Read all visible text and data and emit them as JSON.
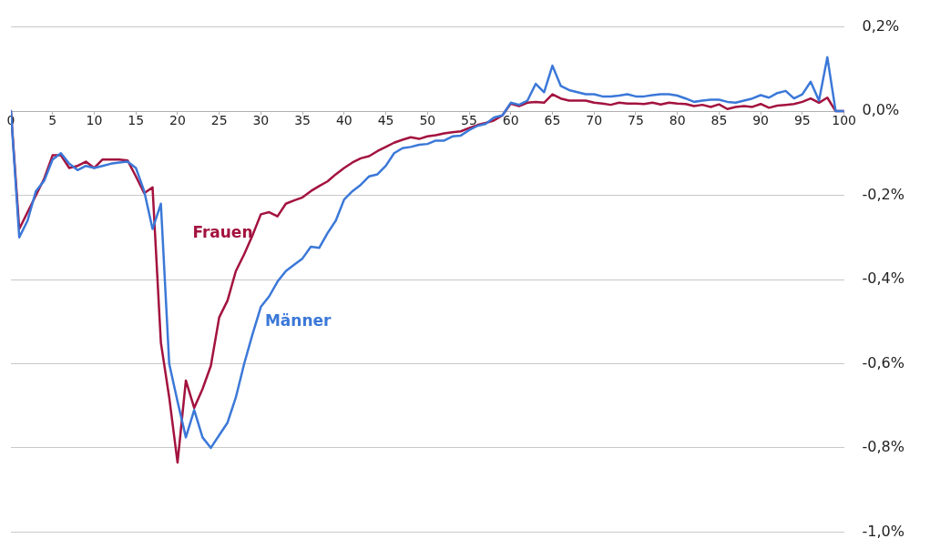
{
  "chart_data": {
    "type": "line",
    "x": [
      0,
      1,
      2,
      3,
      4,
      5,
      6,
      7,
      8,
      9,
      10,
      11,
      12,
      13,
      14,
      15,
      16,
      17,
      18,
      19,
      20,
      21,
      22,
      23,
      24,
      25,
      26,
      27,
      28,
      29,
      30,
      31,
      32,
      33,
      34,
      35,
      36,
      37,
      38,
      39,
      40,
      41,
      42,
      43,
      44,
      45,
      46,
      47,
      48,
      49,
      50,
      51,
      52,
      53,
      54,
      55,
      56,
      57,
      58,
      59,
      60,
      61,
      62,
      63,
      64,
      65,
      66,
      67,
      68,
      69,
      70,
      71,
      72,
      73,
      74,
      75,
      76,
      77,
      78,
      79,
      80,
      81,
      82,
      83,
      84,
      85,
      86,
      87,
      88,
      89,
      90,
      91,
      92,
      93,
      94,
      95,
      96,
      97,
      98,
      99,
      100
    ],
    "series": [
      {
        "name": "Männer",
        "color": "#3b78d8",
        "values": [
          0,
          -0.3,
          -0.26,
          -0.19,
          -0.165,
          -0.115,
          -0.1,
          -0.125,
          -0.14,
          -0.13,
          -0.135,
          -0.13,
          -0.125,
          -0.122,
          -0.12,
          -0.135,
          -0.19,
          -0.28,
          -0.22,
          -0.6,
          -0.69,
          -0.775,
          -0.71,
          -0.775,
          -0.8,
          -0.77,
          -0.74,
          -0.68,
          -0.6,
          -0.53,
          -0.465,
          -0.44,
          -0.405,
          -0.38,
          -0.365,
          -0.35,
          -0.322,
          -0.325,
          -0.29,
          -0.26,
          -0.21,
          -0.19,
          -0.175,
          -0.155,
          -0.15,
          -0.13,
          -0.1,
          -0.088,
          -0.085,
          -0.08,
          -0.078,
          -0.07,
          -0.07,
          -0.06,
          -0.058,
          -0.045,
          -0.035,
          -0.03,
          -0.015,
          -0.01,
          0.02,
          0.015,
          0.025,
          0.065,
          0.045,
          0.108,
          0.06,
          0.05,
          0.045,
          0.04,
          0.04,
          0.035,
          0.035,
          0.037,
          0.04,
          0.035,
          0.035,
          0.038,
          0.04,
          0.04,
          0.037,
          0.03,
          0.022,
          0.025,
          0.027,
          0.027,
          0.022,
          0.02,
          0.025,
          0.03,
          0.038,
          0.032,
          0.043,
          0.048,
          0.03,
          0.04,
          0.07,
          0.025,
          0.128,
          0,
          0
        ]
      },
      {
        "name": "Frauen",
        "color": "#a3123f",
        "values": [
          0,
          -0.28,
          -0.24,
          -0.2,
          -0.16,
          -0.105,
          -0.105,
          -0.135,
          -0.13,
          -0.12,
          -0.135,
          -0.115,
          -0.115,
          -0.115,
          -0.117,
          -0.155,
          -0.195,
          -0.181,
          -0.55,
          -0.68,
          -0.835,
          -0.64,
          -0.705,
          -0.66,
          -0.605,
          -0.49,
          -0.45,
          -0.38,
          -0.34,
          -0.295,
          -0.245,
          -0.24,
          -0.25,
          -0.22,
          -0.212,
          -0.205,
          -0.19,
          -0.178,
          -0.167,
          -0.15,
          -0.135,
          -0.122,
          -0.112,
          -0.107,
          -0.095,
          -0.085,
          -0.075,
          -0.068,
          -0.062,
          -0.066,
          -0.06,
          -0.057,
          -0.053,
          -0.05,
          -0.048,
          -0.04,
          -0.033,
          -0.028,
          -0.022,
          -0.01,
          0.018,
          0.012,
          0.02,
          0.022,
          0.02,
          0.04,
          0.03,
          0.025,
          0.025,
          0.025,
          0.02,
          0.018,
          0.015,
          0.02,
          0.018,
          0.018,
          0.017,
          0.02,
          0.016,
          0.02,
          0.018,
          0.017,
          0.012,
          0.015,
          0.01,
          0.016,
          0.005,
          0.01,
          0.012,
          0.01,
          0.017,
          0.008,
          0.013,
          0.015,
          0.017,
          0.022,
          0.03,
          0.02,
          0.032,
          0,
          0
        ]
      }
    ],
    "xlim": [
      0,
      100
    ],
    "xticks": [
      0,
      5,
      10,
      15,
      20,
      25,
      30,
      35,
      40,
      45,
      50,
      55,
      60,
      65,
      70,
      75,
      80,
      85,
      90,
      95,
      100
    ],
    "ylim": [
      -1.0,
      0.2
    ],
    "yticks": [
      {
        "value": -1.0,
        "label": "-1,0%"
      },
      {
        "value": -0.8,
        "label": "-0,8%"
      },
      {
        "value": -0.6,
        "label": "-0,6%"
      },
      {
        "value": -0.4,
        "label": "-0,4%"
      },
      {
        "value": -0.2,
        "label": "-0,2%"
      },
      {
        "value": 0,
        "label": "0,0%"
      },
      {
        "value": 0.2,
        "label": "0,2%"
      }
    ],
    "grid": "y",
    "legend": false,
    "marker": "none",
    "line_style": "solid"
  }
}
